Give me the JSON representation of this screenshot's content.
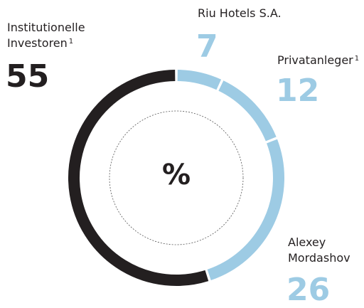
{
  "chart_data": {
    "type": "donut",
    "center_label": "%",
    "series": [
      {
        "name": "Riu Hotels S.A.",
        "values": [
          7
        ],
        "color": "#9dcbe4"
      },
      {
        "name": "Privatanleger",
        "footnote": "1",
        "values": [
          12
        ],
        "color": "#9dcbe4"
      },
      {
        "name": "Alexey Mordashov",
        "values": [
          26
        ],
        "color": "#9dcbe4"
      },
      {
        "name": "Institutionelle Investoren",
        "footnote": "1",
        "values": [
          55
        ],
        "color": "#231f20"
      }
    ]
  }
}
